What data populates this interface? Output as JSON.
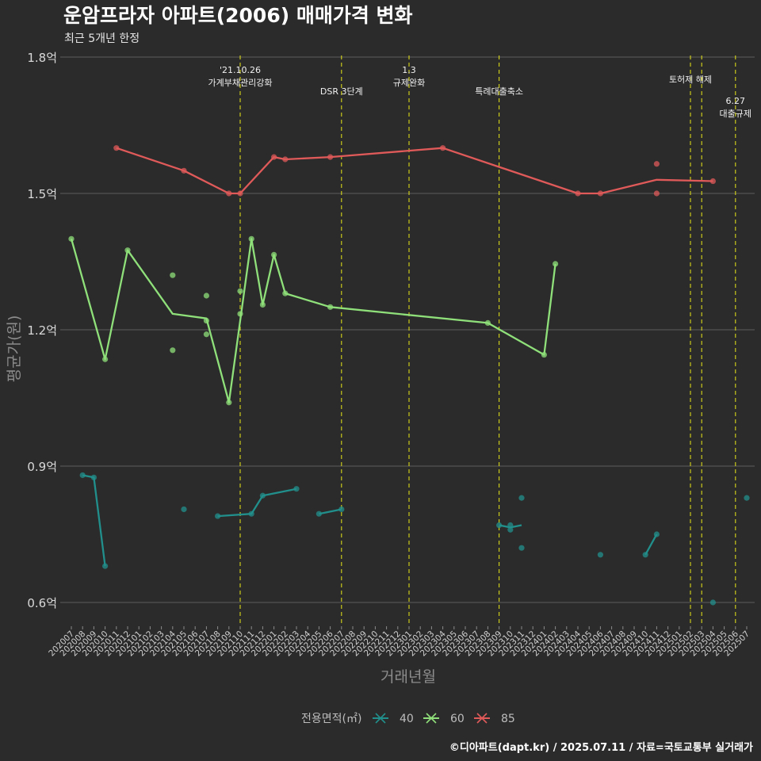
{
  "chart_data": {
    "type": "line",
    "title": "운암프라자 아파트(2006) 매매가격 변화",
    "subtitle": "최근 5개년 한정",
    "xlabel": "거래년월",
    "ylabel": "평균가(원)",
    "ylim": [
      0.55,
      1.8
    ],
    "grid": true,
    "y_ticks": [
      {
        "value": 0.6,
        "label": "0.6억"
      },
      {
        "value": 0.9,
        "label": "0.9억"
      },
      {
        "value": 1.2,
        "label": "1.2억"
      },
      {
        "value": 1.5,
        "label": "1.5억"
      },
      {
        "value": 1.8,
        "label": "1.8억"
      }
    ],
    "categories": [
      "202007",
      "202008",
      "202009",
      "202010",
      "202011",
      "202012",
      "202101",
      "202102",
      "202103",
      "202104",
      "202105",
      "202106",
      "202107",
      "202108",
      "202109",
      "202110",
      "202111",
      "202112",
      "202201",
      "202202",
      "202203",
      "202204",
      "202205",
      "202206",
      "202207",
      "202208",
      "202209",
      "202210",
      "202211",
      "202212",
      "202301",
      "202302",
      "202303",
      "202304",
      "202305",
      "202306",
      "202307",
      "202308",
      "202309",
      "202310",
      "202311",
      "202312",
      "202401",
      "202402",
      "202403",
      "202404",
      "202405",
      "202406",
      "202407",
      "202408",
      "202409",
      "202410",
      "202411",
      "202412",
      "202501",
      "202502",
      "202503",
      "202504",
      "202505",
      "202506",
      "202507"
    ],
    "events": [
      {
        "month": "202110",
        "lines": [
          "'21.10.26",
          "가계부채관리강화"
        ],
        "row": 0
      },
      {
        "month": "202207",
        "lines": [
          "DSR 3단계"
        ],
        "row": 2
      },
      {
        "month": "202301",
        "lines": [
          "1.3",
          "규제완화"
        ],
        "row": 0
      },
      {
        "month": "202309",
        "lines": [
          "특례대출축소"
        ],
        "row": 2
      },
      {
        "month": "202502",
        "lines": [
          "토허제 해제"
        ],
        "row": 1
      },
      {
        "month": "202503",
        "lines": [],
        "row": 1
      },
      {
        "month": "202506",
        "lines": [
          "6.27",
          "대출규제"
        ],
        "row": 3
      }
    ],
    "legend": {
      "title": "전용면적(㎡)",
      "position": "bottom"
    },
    "series": [
      {
        "name": "40",
        "color": "#21908c",
        "line": [
          [
            [
              "202008",
              0.88
            ],
            [
              "202009",
              0.875
            ],
            [
              "202010",
              0.68
            ]
          ],
          [
            [
              "202108",
              0.79
            ],
            [
              "202111",
              0.795
            ],
            [
              "202112",
              0.835
            ],
            [
              "202203",
              0.85
            ]
          ],
          [
            [
              "202205",
              0.795
            ],
            [
              "202207",
              0.805
            ]
          ],
          [
            [
              "202309",
              0.77
            ],
            [
              "202310",
              0.765
            ],
            [
              "202311",
              0.77
            ]
          ],
          [
            [
              "202410",
              0.705
            ],
            [
              "202411",
              0.75
            ]
          ]
        ],
        "points": [
          [
            "202008",
            0.88
          ],
          [
            "202009",
            0.875
          ],
          [
            "202010",
            0.68
          ],
          [
            "202105",
            0.805
          ],
          [
            "202108",
            0.79
          ],
          [
            "202111",
            0.795
          ],
          [
            "202112",
            0.835
          ],
          [
            "202203",
            0.85
          ],
          [
            "202205",
            0.795
          ],
          [
            "202207",
            0.805
          ],
          [
            "202309",
            0.77
          ],
          [
            "202310",
            0.77
          ],
          [
            "202310",
            0.76
          ],
          [
            "202311",
            0.83
          ],
          [
            "202311",
            0.72
          ],
          [
            "202406",
            0.705
          ],
          [
            "202410",
            0.705
          ],
          [
            "202411",
            0.75
          ],
          [
            "202504",
            0.6
          ],
          [
            "202507",
            0.83
          ]
        ]
      },
      {
        "name": "60",
        "color": "#8fe07a",
        "line": [
          [
            [
              "202007",
              1.4
            ],
            [
              "202010",
              1.135
            ],
            [
              "202012",
              1.375
            ],
            [
              "202104",
              1.235
            ],
            [
              "202107",
              1.225
            ],
            [
              "202109",
              1.04
            ],
            [
              "202111",
              1.4
            ],
            [
              "202112",
              1.255
            ],
            [
              "202201",
              1.365
            ],
            [
              "202202",
              1.28
            ],
            [
              "202206",
              1.25
            ],
            [
              "202308",
              1.215
            ],
            [
              "202401",
              1.145
            ],
            [
              "202402",
              1.345
            ]
          ]
        ],
        "points": [
          [
            "202007",
            1.4
          ],
          [
            "202010",
            1.135
          ],
          [
            "202012",
            1.375
          ],
          [
            "202104",
            1.32
          ],
          [
            "202104",
            1.155
          ],
          [
            "202107",
            1.275
          ],
          [
            "202107",
            1.22
          ],
          [
            "202107",
            1.19
          ],
          [
            "202109",
            1.04
          ],
          [
            "202110",
            1.285
          ],
          [
            "202110",
            1.235
          ],
          [
            "202111",
            1.4
          ],
          [
            "202112",
            1.255
          ],
          [
            "202201",
            1.365
          ],
          [
            "202202",
            1.28
          ],
          [
            "202206",
            1.25
          ],
          [
            "202308",
            1.215
          ],
          [
            "202401",
            1.145
          ],
          [
            "202402",
            1.345
          ]
        ]
      },
      {
        "name": "85",
        "color": "#e05a5a",
        "line": [
          [
            [
              "202011",
              1.6
            ],
            [
              "202105",
              1.55
            ],
            [
              "202109",
              1.5
            ],
            [
              "202110",
              1.5
            ],
            [
              "202201",
              1.58
            ],
            [
              "202202",
              1.575
            ],
            [
              "202206",
              1.58
            ],
            [
              "202304",
              1.6
            ],
            [
              "202404",
              1.5
            ],
            [
              "202406",
              1.5
            ],
            [
              "202411",
              1.53
            ],
            [
              "202504",
              1.527
            ]
          ]
        ],
        "points": [
          [
            "202011",
            1.6
          ],
          [
            "202105",
            1.55
          ],
          [
            "202109",
            1.5
          ],
          [
            "202110",
            1.5
          ],
          [
            "202201",
            1.58
          ],
          [
            "202202",
            1.575
          ],
          [
            "202206",
            1.58
          ],
          [
            "202304",
            1.6
          ],
          [
            "202404",
            1.5
          ],
          [
            "202406",
            1.5
          ],
          [
            "202411",
            1.565
          ],
          [
            "202411",
            1.5
          ],
          [
            "202504",
            1.527
          ]
        ]
      }
    ],
    "caption": "©디아파트(dapt.kr) / 2025.07.11 / 자료=국토교통부 실거래가"
  }
}
